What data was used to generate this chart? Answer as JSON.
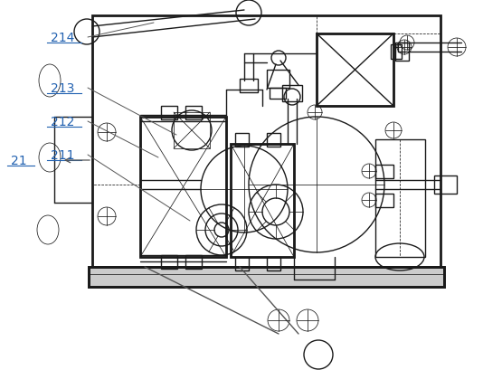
{
  "bg_color": "#ffffff",
  "line_color": "#1a1a1a",
  "label_color": "#2060b0",
  "ann_color": "#555555",
  "figsize": [
    5.34,
    4.1
  ],
  "dpi": 100,
  "lw_thick": 2.0,
  "lw_main": 1.0,
  "lw_thin": 0.55,
  "lw_ann": 0.7
}
